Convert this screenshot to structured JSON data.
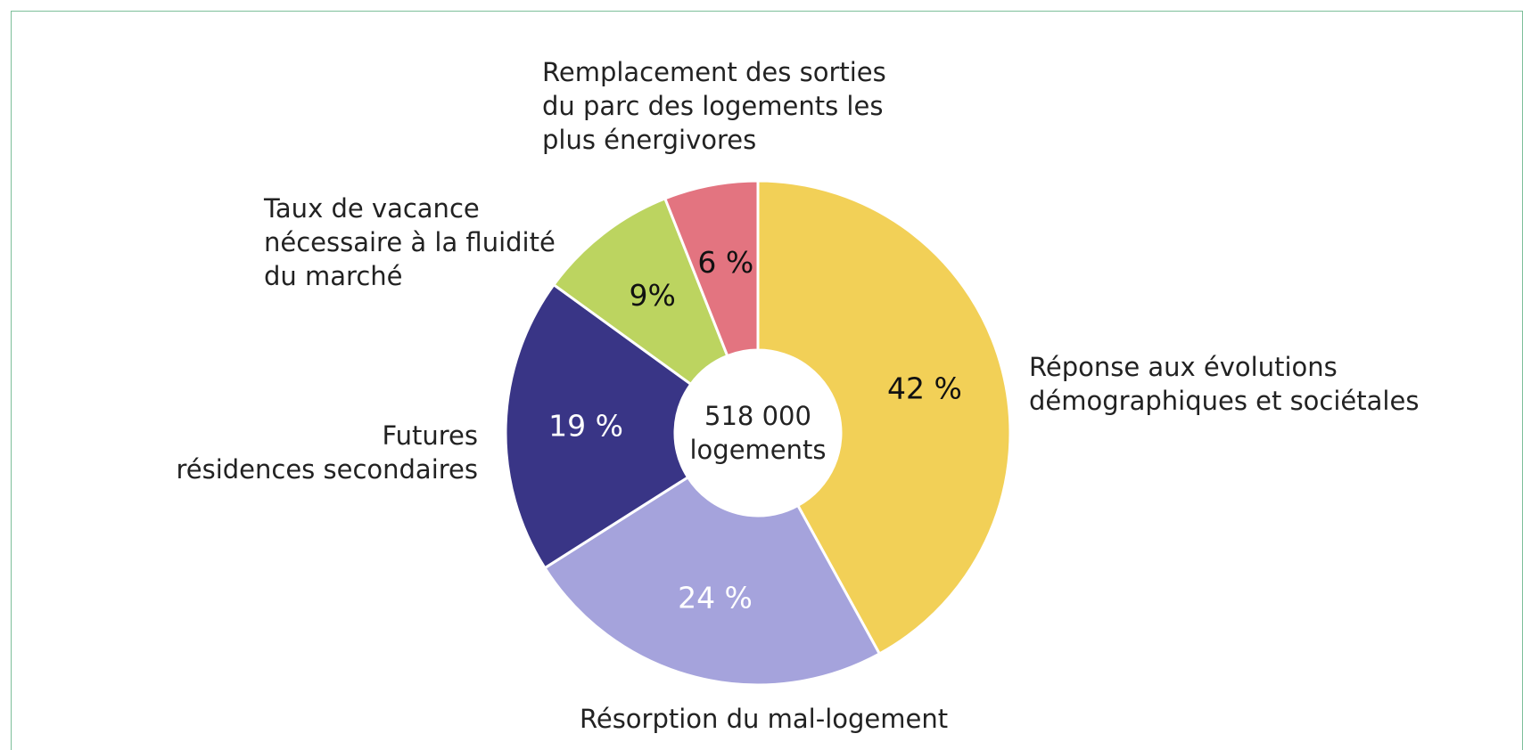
{
  "chart_data": {
    "type": "donut",
    "center_label": "518 000\nlogements",
    "categories": [
      "Réponse aux évolutions\ndémographiques et sociétales",
      "Résorption du mal-logement",
      "Futures\nrésidences secondaires",
      "Taux de vacance\nnécessaire à la fluidité\ndu marché",
      "Remplacement des sorties\ndu parc des logements les\nplus énergivores"
    ],
    "values": [
      42,
      24,
      19,
      9,
      6
    ],
    "value_labels": [
      "42 %",
      "24 %",
      "19 %",
      "9%",
      "6 %"
    ],
    "colors": [
      "#f2d057",
      "#a5a3dc",
      "#393586",
      "#bcd460",
      "#e37480"
    ],
    "label_colors": [
      "#111111",
      "#ffffff",
      "#ffffff",
      "#111111",
      "#111111"
    ]
  }
}
